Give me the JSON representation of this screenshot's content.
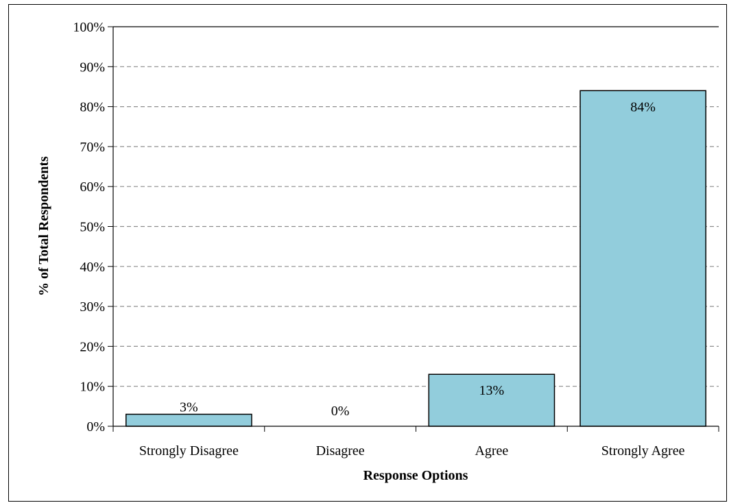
{
  "chart_data": {
    "type": "bar",
    "categories": [
      "Strongly Disagree",
      "Disagree",
      "Agree",
      "Strongly Agree"
    ],
    "values": [
      3,
      0,
      13,
      84
    ],
    "data_labels": [
      "3%",
      "0%",
      "13%",
      "84%"
    ],
    "y_ticks": [
      "0%",
      "10%",
      "20%",
      "30%",
      "40%",
      "50%",
      "60%",
      "70%",
      "80%",
      "90%",
      "100%"
    ],
    "xlabel": "Response Options",
    "ylabel": "% of Total Respondents",
    "ylim": [
      0,
      100
    ],
    "grid": true,
    "bar_color": "#92CDDC",
    "bar_edge_color": "#000000"
  }
}
